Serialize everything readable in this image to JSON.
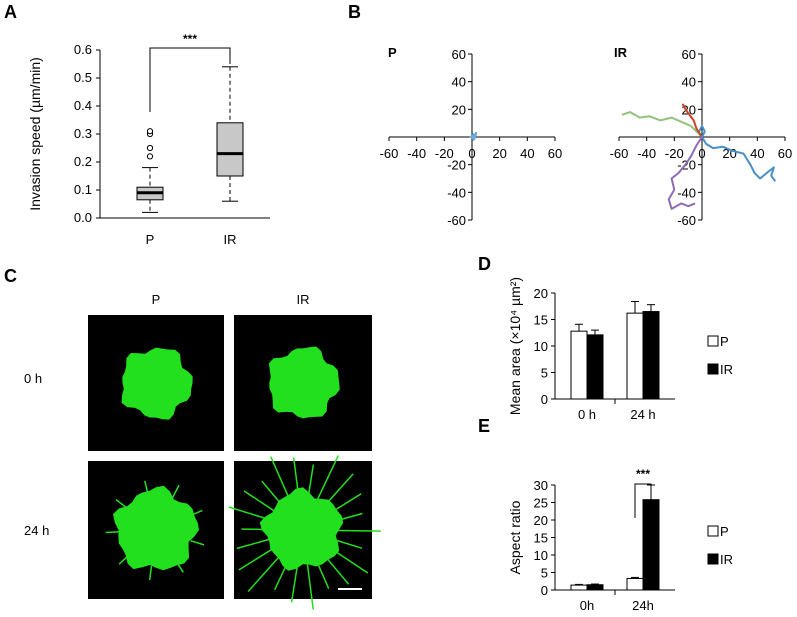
{
  "panels": {
    "A": "A",
    "B": "B",
    "C": "C",
    "D": "D",
    "E": "E"
  },
  "chart_data": [
    {
      "panel": "A",
      "type": "box",
      "ylabel": "Invasion speed (µm/min)",
      "ylim": [
        0,
        0.6
      ],
      "yticks": [
        "0.0",
        "0.1",
        "0.2",
        "0.3",
        "0.4",
        "0.5",
        "0.6"
      ],
      "categories": [
        "P",
        "IR"
      ],
      "boxes": [
        {
          "category": "P",
          "whisker_low": 0.02,
          "q1": 0.065,
          "median": 0.09,
          "q3": 0.11,
          "whisker_high": 0.18,
          "outliers": [
            0.22,
            0.25,
            0.3,
            0.31
          ]
        },
        {
          "category": "IR",
          "whisker_low": 0.06,
          "q1": 0.15,
          "median": 0.23,
          "q3": 0.34,
          "whisker_high": 0.54,
          "outliers": []
        }
      ],
      "significance": "***",
      "box_color": "#c8c8c8"
    },
    {
      "panel": "B",
      "type": "line",
      "subplots": [
        {
          "label": "P",
          "xlim": [
            -60,
            60
          ],
          "ylim": [
            -60,
            60
          ],
          "xticks": [
            "-60",
            "-40",
            "-20",
            "0",
            "20",
            "40",
            "60"
          ],
          "yticks": [
            "60",
            "40",
            "20",
            "0",
            "-20",
            "-40",
            "-60"
          ],
          "series": [
            {
              "color": "#6fa8dc",
              "points": [
                [
                  0,
                  0
                ],
                [
                  1,
                  2
                ],
                [
                  2,
                  1
                ],
                [
                  3,
                  3
                ],
                [
                  2,
                  -1
                ],
                [
                  1,
                  -2
                ],
                [
                  0,
                  1
                ],
                [
                  -1,
                  0
                ],
                [
                  1,
                  1
                ],
                [
                  3,
                  2
                ],
                [
                  2,
                  0
                ],
                [
                  0,
                  -1
                ]
              ]
            }
          ]
        },
        {
          "label": "IR",
          "xlim": [
            -60,
            60
          ],
          "ylim": [
            -60,
            60
          ],
          "xticks": [
            "-60",
            "-40",
            "-20",
            "0",
            "20",
            "40",
            "60"
          ],
          "yticks": [
            "60",
            "40",
            "20",
            "0",
            "-20",
            "-40",
            "-60"
          ],
          "series": [
            {
              "color": "#93c47d",
              "points": [
                [
                  0,
                  0
                ],
                [
                  -8,
                  8
                ],
                [
                  -15,
                  11
                ],
                [
                  -22,
                  14
                ],
                [
                  -30,
                  12
                ],
                [
                  -38,
                  15
                ],
                [
                  -45,
                  14
                ],
                [
                  -52,
                  18
                ],
                [
                  -58,
                  16
                ]
              ]
            },
            {
              "color": "#cc4125",
              "points": [
                [
                  0,
                  0
                ],
                [
                  -4,
                  6
                ],
                [
                  -6,
                  12
                ],
                [
                  -9,
                  16
                ],
                [
                  -12,
                  20
                ],
                [
                  -14,
                  24
                ]
              ]
            },
            {
              "color": "#4a90c8",
              "points": [
                [
                  0,
                  0
                ],
                [
                  3,
                  -5
                ],
                [
                  8,
                  -8
                ],
                [
                  15,
                  -7
                ],
                [
                  22,
                  -10
                ],
                [
                  30,
                  -12
                ],
                [
                  35,
                  -20
                ],
                [
                  38,
                  -26
                ],
                [
                  42,
                  -30
                ],
                [
                  48,
                  -25
                ],
                [
                  52,
                  -22
                ],
                [
                  50,
                  -28
                ],
                [
                  53,
                  -32
                ]
              ]
            },
            {
              "color": "#8e6bb5",
              "points": [
                [
                  0,
                  0
                ],
                [
                  -4,
                  -6
                ],
                [
                  -8,
                  -14
                ],
                [
                  -12,
                  -20
                ],
                [
                  -17,
                  -26
                ],
                [
                  -22,
                  -30
                ],
                [
                  -20,
                  -38
                ],
                [
                  -24,
                  -45
                ],
                [
                  -22,
                  -52
                ],
                [
                  -15,
                  -48
                ],
                [
                  -10,
                  -50
                ],
                [
                  -5,
                  -48
                ]
              ]
            },
            {
              "color": "#4a90c8",
              "points": [
                [
                  0,
                  0
                ],
                [
                  2,
                  4
                ],
                [
                  0,
                  8
                ],
                [
                  -2,
                  4
                ]
              ]
            }
          ]
        }
      ]
    },
    {
      "panel": "D",
      "type": "bar",
      "ylabel": "Mean area (×10⁴ µm²)",
      "ylim": [
        0,
        20
      ],
      "yticks": [
        "0",
        "5",
        "10",
        "15",
        "20"
      ],
      "categories": [
        "0 h",
        "24 h"
      ],
      "series": [
        {
          "name": "P",
          "color": "#ffffff",
          "values": [
            12.8,
            16.2
          ],
          "errors": [
            1.3,
            2.2
          ]
        },
        {
          "name": "IR",
          "color": "#000000",
          "values": [
            12.1,
            16.5
          ],
          "errors": [
            0.9,
            1.3
          ]
        }
      ]
    },
    {
      "panel": "E",
      "type": "bar",
      "ylabel": "Aspect ratio",
      "ylim": [
        0,
        30
      ],
      "yticks": [
        "0",
        "5",
        "10",
        "15",
        "20",
        "25",
        "30"
      ],
      "categories": [
        "0h",
        "24h"
      ],
      "significance": "***",
      "series": [
        {
          "name": "P",
          "color": "#ffffff",
          "values": [
            1.4,
            3.3
          ],
          "errors": [
            0.2,
            0.3
          ]
        },
        {
          "name": "IR",
          "color": "#000000",
          "values": [
            1.5,
            25.8
          ],
          "errors": [
            0.2,
            4.2
          ]
        }
      ]
    }
  ],
  "microscopy": {
    "columns": [
      "P",
      "IR"
    ],
    "rows": [
      "0 h",
      "24 h"
    ]
  }
}
